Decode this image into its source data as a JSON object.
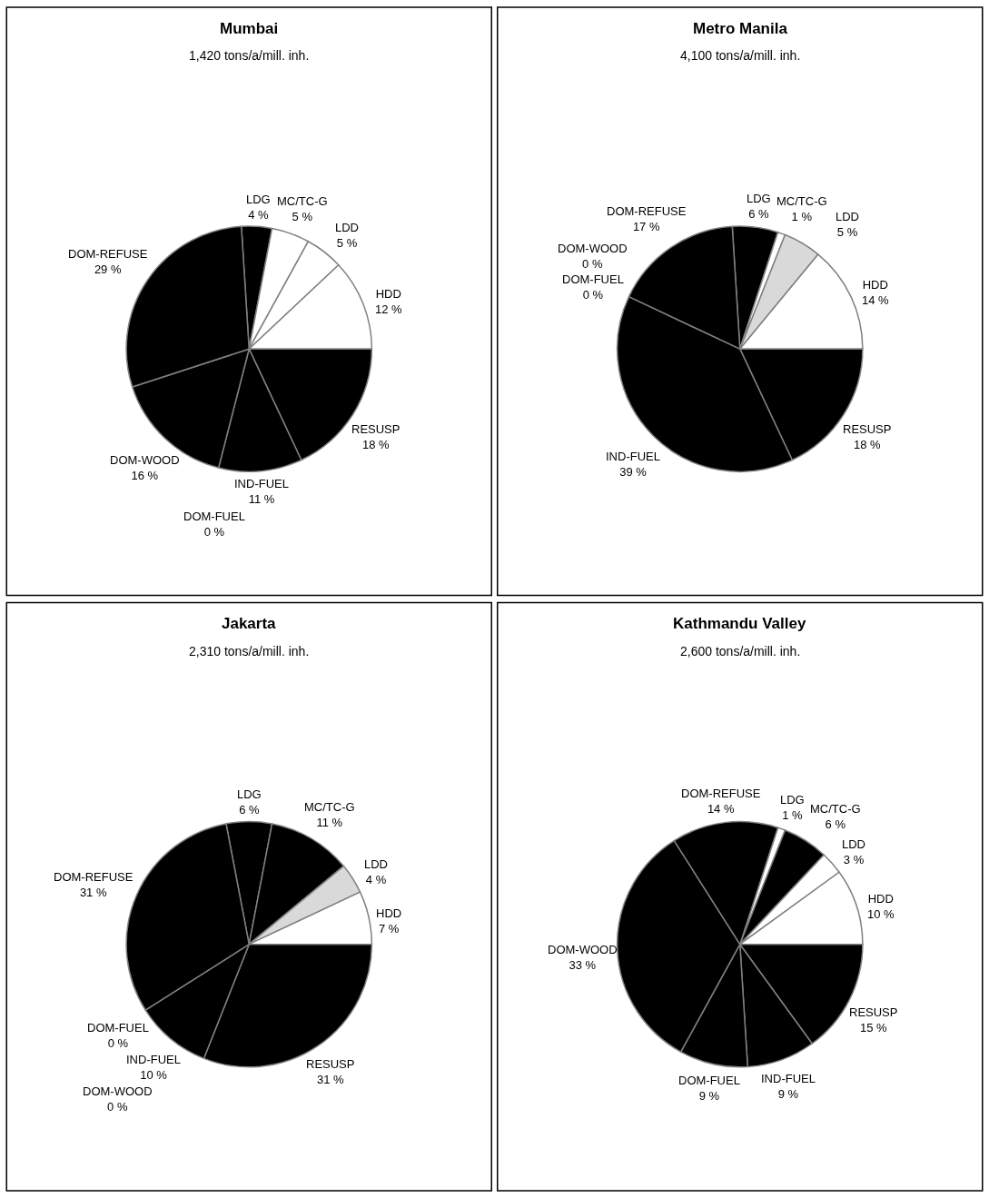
{
  "chart_data": [
    {
      "type": "pie",
      "title": "Mumbai",
      "subtitle": "1,420 tons/a/mill. inh.",
      "categories": [
        "LDG",
        "MC/TC-G",
        "LDD",
        "HDD",
        "RESUSP",
        "IND-FUEL",
        "DOM-FUEL",
        "DOM-WOOD",
        "DOM-REFUSE"
      ],
      "values": [
        4,
        5,
        5,
        12,
        18,
        11,
        0,
        16,
        29
      ],
      "value_labels": [
        "4 %",
        "5 %",
        "5 %",
        "12 %",
        "18 %",
        "11 %",
        "0 %",
        "16 %",
        "29 %"
      ],
      "colors": [
        "#000000",
        "#ffffff",
        "#ffffff",
        "#ffffff",
        "#000000",
        "#000000",
        "#000000",
        "#000000",
        "#000000"
      ]
    },
    {
      "type": "pie",
      "title": "Metro Manila",
      "subtitle": "4,100 tons/a/mill. inh.",
      "categories": [
        "LDG",
        "MC/TC-G",
        "LDD",
        "HDD",
        "RESUSP",
        "IND-FUEL",
        "DOM-FUEL",
        "DOM-WOOD",
        "DOM-REFUSE"
      ],
      "values": [
        6,
        1,
        5,
        14,
        18,
        39,
        0,
        0,
        17
      ],
      "value_labels": [
        "6 %",
        "1 %",
        "5 %",
        "14 %",
        "18 %",
        "39 %",
        "0 %",
        "0 %",
        "17 %"
      ],
      "colors": [
        "#000000",
        "#ffffff",
        "#d9d9d9",
        "#ffffff",
        "#000000",
        "#000000",
        "#000000",
        "#000000",
        "#000000"
      ]
    },
    {
      "type": "pie",
      "title": "Jakarta",
      "subtitle": "2,310 tons/a/mill. inh.",
      "categories": [
        "LDG",
        "MC/TC-G",
        "LDD",
        "HDD",
        "RESUSP",
        "IND-FUEL",
        "DOM-FUEL",
        "DOM-WOOD",
        "DOM-REFUSE"
      ],
      "values": [
        6,
        11,
        4,
        7,
        31,
        10,
        0,
        0,
        31
      ],
      "value_labels": [
        "6 %",
        "11 %",
        "4 %",
        "7 %",
        "31 %",
        "10 %",
        "0 %",
        "0 %",
        "31 %"
      ],
      "colors": [
        "#000000",
        "#000000",
        "#d9d9d9",
        "#ffffff",
        "#000000",
        "#000000",
        "#000000",
        "#000000",
        "#000000"
      ]
    },
    {
      "type": "pie",
      "title": "Kathmandu Valley",
      "subtitle": "2,600 tons/a/mill. inh.",
      "categories": [
        "LDG",
        "MC/TC-G",
        "LDD",
        "HDD",
        "RESUSP",
        "IND-FUEL",
        "DOM-FUEL",
        "DOM-WOOD",
        "DOM-REFUSE"
      ],
      "values": [
        1,
        6,
        3,
        10,
        15,
        9,
        9,
        33,
        14
      ],
      "value_labels": [
        "1 %",
        "6 %",
        "3 %",
        "10 %",
        "15 %",
        "9 %",
        "9 %",
        "33 %",
        "14 %"
      ],
      "colors": [
        "#ffffff",
        "#000000",
        "#ffffff",
        "#ffffff",
        "#000000",
        "#000000",
        "#000000",
        "#000000",
        "#000000"
      ]
    }
  ]
}
